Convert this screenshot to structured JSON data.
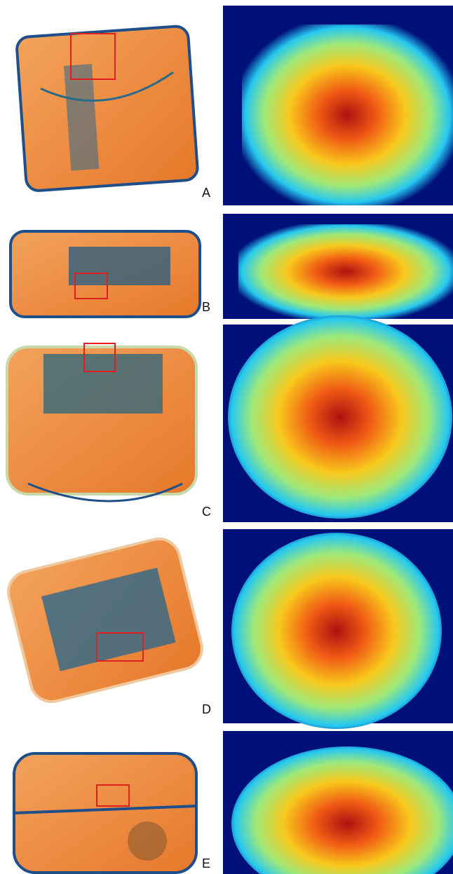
{
  "panels": [
    {
      "label": "A"
    },
    {
      "label": "B"
    },
    {
      "label": "C"
    },
    {
      "label": "D"
    },
    {
      "label": "E"
    }
  ]
}
